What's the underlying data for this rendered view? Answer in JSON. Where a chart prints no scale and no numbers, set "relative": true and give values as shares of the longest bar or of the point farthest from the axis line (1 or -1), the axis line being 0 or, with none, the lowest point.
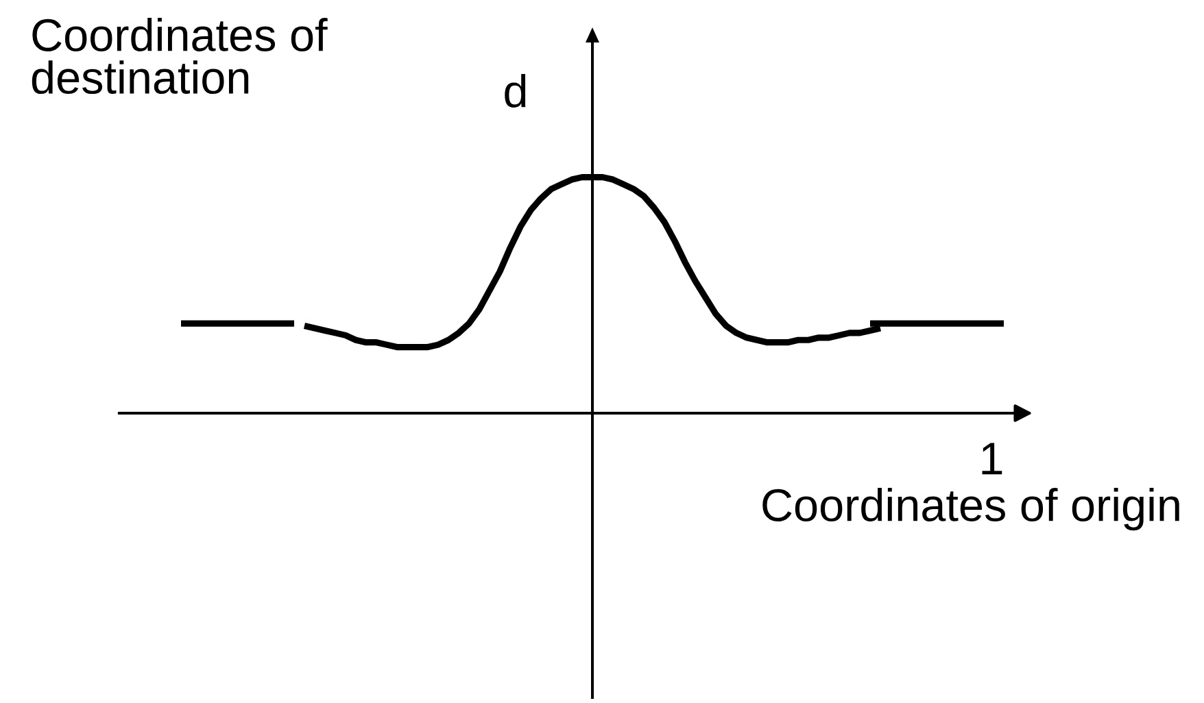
{
  "chart_data": {
    "type": "line",
    "relative": true,
    "xlabel": "Coordinates of origin",
    "ylabel": "Coordinates of\ndestination",
    "annotations": [
      "d",
      "1"
    ],
    "categories": [
      null,
      null,
      null,
      null,
      null,
      null,
      null,
      null,
      null,
      null,
      null,
      null,
      null,
      null,
      null,
      null,
      null,
      null,
      null,
      null,
      null,
      null,
      null,
      null,
      null,
      null,
      null,
      null,
      null,
      null,
      null,
      null,
      null,
      null,
      null,
      null,
      null,
      null,
      null,
      null,
      null,
      null,
      null,
      null,
      null,
      null,
      null,
      null,
      null,
      null,
      null,
      null,
      null,
      null,
      null,
      null,
      null,
      null,
      null,
      null,
      null,
      null,
      null,
      null,
      null,
      null,
      null,
      null,
      null,
      null,
      null,
      null,
      null,
      null,
      null,
      null,
      null,
      null,
      null,
      null,
      null
    ],
    "series": [
      {
        "color": "#000000",
        "values": [
          0.38,
          0.38,
          0.38,
          0.38,
          0.38,
          0.38,
          0.38,
          0.38,
          0.38,
          0.38,
          0.38,
          0.38,
          null,
          null,
          null,
          null,
          null,
          null,
          null,
          null,
          null,
          null,
          null,
          null,
          null,
          null,
          null,
          null,
          null,
          null,
          null,
          null,
          null,
          null,
          null,
          null,
          null,
          null,
          null,
          null,
          null,
          null,
          null,
          null,
          null,
          null,
          null,
          null,
          null,
          null,
          null,
          null,
          null,
          null,
          null,
          null,
          null,
          null,
          null,
          null,
          null,
          null,
          null,
          null,
          null,
          null,
          null,
          null,
          null,
          null,
          null,
          null,
          null,
          null,
          null,
          null,
          null,
          null,
          null,
          null,
          null
        ]
      },
      {
        "color": "#000000",
        "values": [
          null,
          null,
          null,
          null,
          null,
          null,
          null,
          null,
          null,
          null,
          null,
          null,
          0.37,
          0.36,
          0.35,
          0.34,
          0.33,
          0.31,
          0.3,
          0.3,
          0.29,
          0.28,
          0.28,
          0.28,
          0.28,
          0.29,
          0.31,
          0.34,
          0.38,
          0.44,
          0.52,
          0.6,
          0.7,
          0.79,
          0.86,
          0.91,
          0.95,
          0.97,
          0.99,
          1,
          1,
          1,
          0.99,
          0.97,
          0.95,
          0.92,
          0.87,
          0.81,
          0.73,
          0.64,
          0.56,
          0.49,
          0.42,
          0.37,
          0.34,
          0.32,
          0.31,
          0.3,
          0.3,
          0.3,
          0.31,
          0.31,
          0.32,
          0.32,
          0.33,
          0.34,
          0.34,
          0.35,
          0.36,
          null,
          null,
          null,
          null,
          null,
          null,
          null,
          null,
          null,
          null,
          null,
          null
        ]
      },
      {
        "color": "#000000",
        "values": [
          null,
          null,
          null,
          null,
          null,
          null,
          null,
          null,
          null,
          null,
          null,
          null,
          null,
          null,
          null,
          null,
          null,
          null,
          null,
          null,
          null,
          null,
          null,
          null,
          null,
          null,
          null,
          null,
          null,
          null,
          null,
          null,
          null,
          null,
          null,
          null,
          null,
          null,
          null,
          null,
          null,
          null,
          null,
          null,
          null,
          null,
          null,
          null,
          null,
          null,
          null,
          null,
          null,
          null,
          null,
          null,
          null,
          null,
          null,
          null,
          null,
          null,
          null,
          null,
          null,
          null,
          null,
          0.38,
          0.38,
          0.38,
          0.38,
          0.38,
          0.38,
          0.38,
          0.38,
          0.38,
          0.38,
          0.38,
          0.38,
          0.38,
          0.38
        ]
      }
    ]
  }
}
